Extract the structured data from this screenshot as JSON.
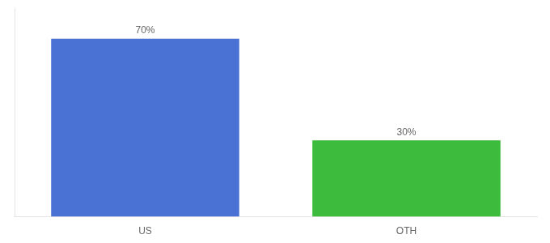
{
  "chart_data": {
    "type": "bar",
    "categories": [
      "US",
      "OTH"
    ],
    "values": [
      70,
      30
    ],
    "value_labels": [
      "70%",
      "30%"
    ],
    "colors": [
      "#4a72d4",
      "#3dbb3d"
    ],
    "ylim": [
      0,
      82
    ],
    "tick_labels": "x",
    "grid": false,
    "data_labels": true
  }
}
